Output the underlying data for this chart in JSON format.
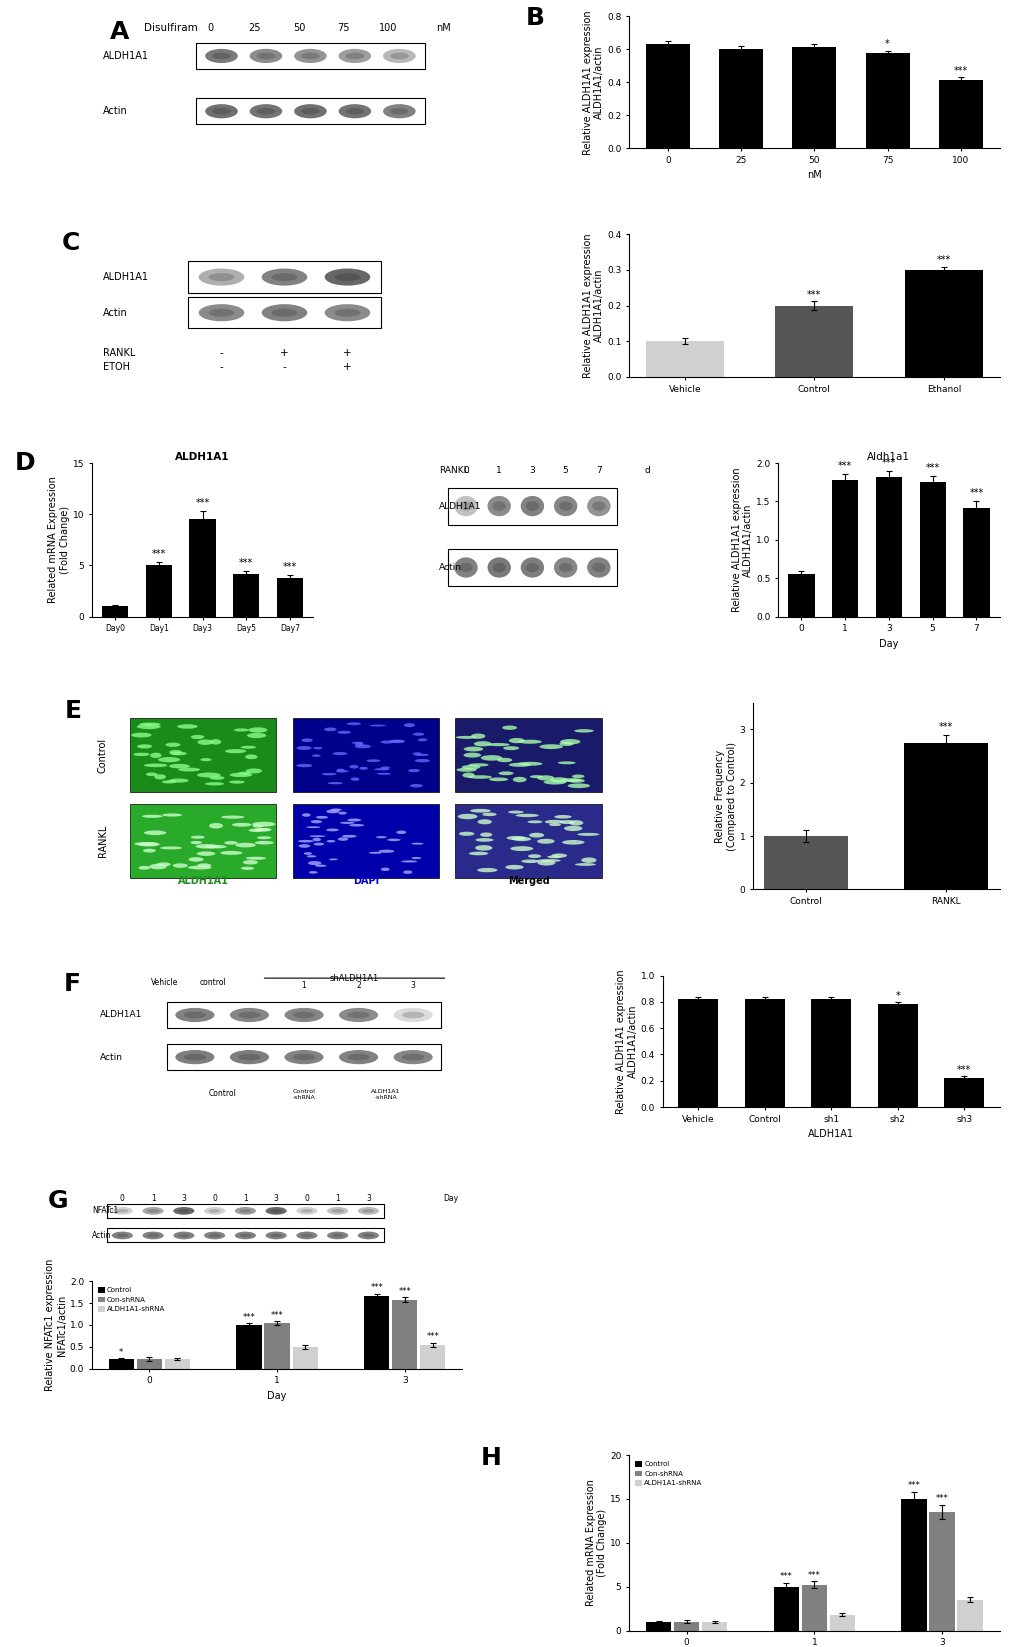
{
  "panel_B": {
    "categories": [
      "0",
      "25",
      "50",
      "75",
      "100"
    ],
    "values": [
      0.635,
      0.605,
      0.615,
      0.578,
      0.415
    ],
    "errors": [
      0.018,
      0.015,
      0.018,
      0.015,
      0.015
    ],
    "ylabel": "Relative ALDH1A1 expression\nALDH1A1/actin",
    "xlabel": "nM",
    "ylim": [
      0,
      0.8
    ],
    "yticks": [
      0.0,
      0.2,
      0.4,
      0.6,
      0.8
    ],
    "sigs": [
      "",
      "",
      "",
      "*",
      "***"
    ]
  },
  "panel_C_bar": {
    "categories": [
      "Vehicle",
      "Control",
      "Ethanol"
    ],
    "values": [
      0.1,
      0.2,
      0.3
    ],
    "errors": [
      0.008,
      0.012,
      0.008
    ],
    "colors": [
      "#d0d0d0",
      "#555555",
      "#000000"
    ],
    "ylabel": "Relative ALDH1A1 expression\nALDH1A1/actin",
    "ylim": [
      0,
      0.4
    ],
    "yticks": [
      0.0,
      0.1,
      0.2,
      0.3,
      0.4
    ],
    "sigs": [
      "",
      "***",
      "***"
    ]
  },
  "panel_D_bar": {
    "categories": [
      "Day0",
      "Day1",
      "Day3",
      "Day5",
      "Day7"
    ],
    "values": [
      1.0,
      5.0,
      9.5,
      4.2,
      3.8
    ],
    "errors": [
      0.15,
      0.35,
      0.8,
      0.3,
      0.3
    ],
    "ylabel": "Related mRNA Expression\n(Fold Change)",
    "title": "ALDH1A1",
    "ylim": [
      0,
      15
    ],
    "yticks": [
      0,
      5,
      10,
      15
    ],
    "sigs": [
      "",
      "***",
      "***",
      "***",
      "***"
    ]
  },
  "panel_D_right": {
    "categories": [
      "0",
      "1",
      "3",
      "5",
      "7"
    ],
    "values": [
      0.55,
      1.78,
      1.82,
      1.75,
      1.42
    ],
    "errors": [
      0.05,
      0.08,
      0.08,
      0.08,
      0.08
    ],
    "ylabel": "Relative ALDH1A1 expression\nALDH1A1/actin",
    "xlabel": "Day",
    "title": "Aldh1a1",
    "ylim": [
      0,
      2.0
    ],
    "yticks": [
      0.0,
      0.5,
      1.0,
      1.5,
      2.0
    ],
    "sigs": [
      "",
      "***",
      "***",
      "***",
      "***"
    ]
  },
  "panel_E_bar": {
    "categories": [
      "Control",
      "RANKL"
    ],
    "values": [
      1.0,
      2.75
    ],
    "errors": [
      0.12,
      0.15
    ],
    "colors": [
      "#555555",
      "#000000"
    ],
    "ylabel": "Relative Frequency\n(Compared to Control)",
    "ylim": [
      0,
      3.5
    ],
    "yticks": [
      0,
      1,
      2,
      3
    ],
    "sigs": [
      "",
      "***"
    ]
  },
  "panel_F_bar": {
    "categories": [
      "Vehicle",
      "Control",
      "sh1",
      "sh2",
      "sh3"
    ],
    "values": [
      0.82,
      0.82,
      0.82,
      0.78,
      0.22
    ],
    "errors": [
      0.02,
      0.02,
      0.02,
      0.02,
      0.015
    ],
    "ylabel": "Relative ALDH1A1 expression\nALDH1A1/actin",
    "xlabel": "ALDH1A1",
    "ylim": [
      0,
      1.0
    ],
    "yticks": [
      0.0,
      0.2,
      0.4,
      0.6,
      0.8,
      1.0
    ],
    "sigs": [
      "",
      "",
      "",
      "*",
      "***"
    ]
  },
  "panel_G_bar": {
    "categories": [
      "0",
      "1",
      "3"
    ],
    "groups": [
      "Control",
      "Con-shRNA",
      "ALDH1A1-shRNA"
    ],
    "values": [
      [
        0.22,
        1.0,
        1.65
      ],
      [
        0.22,
        1.05,
        1.58
      ],
      [
        0.22,
        0.5,
        0.55
      ]
    ],
    "errors": [
      [
        0.03,
        0.04,
        0.06
      ],
      [
        0.04,
        0.04,
        0.06
      ],
      [
        0.03,
        0.04,
        0.05
      ]
    ],
    "colors": [
      "#000000",
      "#808080",
      "#d0d0d0"
    ],
    "ylabel": "Relative NFATc1 expression\nNFATc1/actin",
    "xlabel": "Day",
    "ylim": [
      0,
      2.0
    ],
    "yticks": [
      0.0,
      0.5,
      1.0,
      1.5,
      2.0
    ],
    "sigs_control": [
      "*",
      "***",
      "***"
    ],
    "sigs_consh": [
      "",
      "***",
      "***"
    ],
    "sigs_aldh1sh": [
      "",
      "",
      "***"
    ]
  },
  "panel_H_bar": {
    "categories": [
      "0",
      "1",
      "3"
    ],
    "groups": [
      "Control",
      "Con-shRNA",
      "ALDH1A1-shRNA"
    ],
    "values": [
      [
        1.0,
        5.0,
        15.0
      ],
      [
        1.0,
        5.2,
        13.5
      ],
      [
        1.0,
        1.8,
        3.5
      ]
    ],
    "errors": [
      [
        0.1,
        0.4,
        0.8
      ],
      [
        0.15,
        0.4,
        0.8
      ],
      [
        0.1,
        0.15,
        0.3
      ]
    ],
    "colors": [
      "#000000",
      "#808080",
      "#d0d0d0"
    ],
    "ylabel": "Related mRNA Expression\n(Fold Change)",
    "xlabel": "Day",
    "ylim": [
      0,
      20
    ],
    "yticks": [
      0,
      5,
      10,
      15,
      20
    ]
  },
  "label_fontsize": 18,
  "axis_fontsize": 7,
  "tick_fontsize": 6.5,
  "bar_width": 0.6
}
